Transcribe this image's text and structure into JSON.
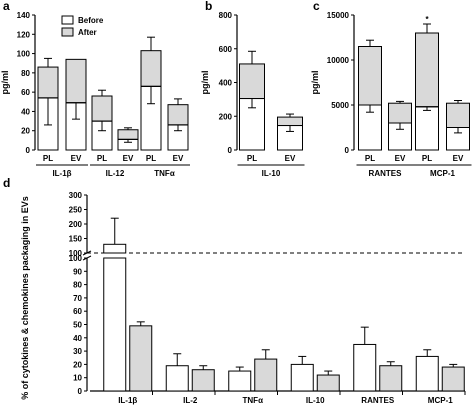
{
  "colors": {
    "before": "#ffffff",
    "after": "#d9d9d9",
    "stroke": "#000000"
  },
  "legend": [
    {
      "label": "Before",
      "color": "#ffffff"
    },
    {
      "label": "After",
      "color": "#d9d9d9"
    }
  ],
  "chart_data": [
    {
      "panel": "a",
      "type": "bar",
      "stacked": true,
      "ylabel": "pg/ml",
      "ylim": [
        0,
        140
      ],
      "yticks": [
        "0",
        "20",
        "40",
        "60",
        "80",
        "100",
        "120",
        "140"
      ],
      "categories": [
        "PL",
        "EV",
        "PL",
        "EV",
        "PL",
        "EV"
      ],
      "groups": [
        {
          "label": "IL-1β",
          "categories": [
            "PL",
            "EV"
          ]
        },
        {
          "label": "IL-12",
          "categories": [
            "PL",
            "EV"
          ]
        },
        {
          "label": "TNFα",
          "categories": [
            "PL",
            "EV"
          ]
        }
      ],
      "series": [
        {
          "name": "Before",
          "values": [
            54,
            49,
            30,
            11,
            66,
            26
          ],
          "errors_down": [
            28,
            17,
            10,
            3,
            18,
            6
          ]
        },
        {
          "name": "After",
          "values": [
            32,
            45,
            26,
            10,
            37,
            21
          ],
          "errors_up": [
            9,
            0,
            6,
            2,
            14,
            6
          ]
        }
      ]
    },
    {
      "panel": "b",
      "type": "bar",
      "stacked": true,
      "ylabel": "pg/ml",
      "ylim": [
        0,
        800
      ],
      "yticks": [
        "0",
        "200",
        "400",
        "600",
        "800"
      ],
      "categories": [
        "PL",
        "EV"
      ],
      "groups": [
        {
          "label": "IL-10",
          "categories": [
            "PL",
            "EV"
          ]
        }
      ],
      "series": [
        {
          "name": "Before",
          "values": [
            305,
            145
          ],
          "errors_down": [
            55,
            35
          ]
        },
        {
          "name": "After",
          "values": [
            205,
            50
          ],
          "errors_up": [
            75,
            18
          ]
        }
      ]
    },
    {
      "panel": "c",
      "type": "bar",
      "stacked": true,
      "ylabel": "pg/ml",
      "ylim": [
        0,
        15000
      ],
      "yticks": [
        "0",
        "5000",
        "10000",
        "15000"
      ],
      "categories": [
        "PL",
        "EV",
        "PL",
        "EV"
      ],
      "groups": [
        {
          "label": "RANTES",
          "categories": [
            "PL",
            "EV"
          ]
        },
        {
          "label": "MCP-1",
          "categories": [
            "PL",
            "EV"
          ]
        }
      ],
      "annotations": [
        {
          "text": "*",
          "bar": 2
        }
      ],
      "series": [
        {
          "name": "Before",
          "values": [
            5000,
            3000,
            4800,
            2500
          ],
          "errors_down": [
            800,
            700,
            400,
            600
          ]
        },
        {
          "name": "After",
          "values": [
            6500,
            2200,
            8200,
            2700
          ],
          "errors_up": [
            700,
            200,
            1000,
            300
          ]
        }
      ]
    },
    {
      "panel": "d",
      "type": "bar",
      "ylabel": "% of cytokines & chemokines packaging in EVs",
      "broken_axis": true,
      "ylim_upper": [
        100,
        300
      ],
      "yticks_upper": [
        "100",
        "150",
        "200",
        "250",
        "300"
      ],
      "ylim_lower": [
        0,
        100
      ],
      "yticks_lower": [
        "0",
        "10",
        "20",
        "30",
        "40",
        "50",
        "60",
        "70",
        "80",
        "90",
        "100"
      ],
      "reference_line": 100,
      "categories": [
        "IL-1β",
        "IL-2",
        "TNFα",
        "IL-10",
        "RANTES",
        "MCP-1"
      ],
      "series": [
        {
          "name": "Before",
          "values": [
            130,
            19,
            15,
            20,
            35,
            26
          ],
          "errors_up": [
            90,
            9,
            3,
            6,
            13,
            5
          ]
        },
        {
          "name": "After",
          "values": [
            49,
            16,
            24,
            12,
            19,
            18
          ],
          "errors_up": [
            3,
            3,
            7,
            3,
            3,
            2
          ]
        }
      ]
    }
  ]
}
